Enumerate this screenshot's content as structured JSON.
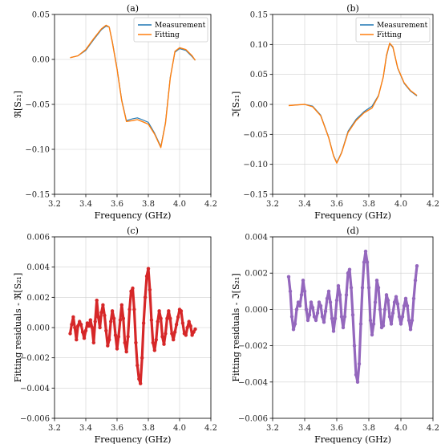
{
  "chart_data": [
    {
      "id": "a",
      "type": "line",
      "title": "(a)",
      "xlabel": "Frequency (GHz)",
      "ylabel": "ℜ[S₂₁]",
      "xlim": [
        3.2,
        4.2
      ],
      "ylim": [
        -0.15,
        0.05
      ],
      "xticks": [
        "3.2",
        "3.4",
        "3.6",
        "3.8",
        "4.0",
        "4.2"
      ],
      "yticks": [
        "0.05",
        "0.00",
        "−0.05",
        "−0.10",
        "−0.15"
      ],
      "grid": true,
      "legend": "top-right",
      "series": [
        {
          "name": "Measurement",
          "color": "#1f77b4",
          "x": [
            3.3,
            3.35,
            3.4,
            3.45,
            3.5,
            3.53,
            3.55,
            3.57,
            3.6,
            3.63,
            3.66,
            3.7,
            3.73,
            3.76,
            3.8,
            3.84,
            3.88,
            3.91,
            3.94,
            3.97,
            4.0,
            4.04,
            4.08,
            4.1
          ],
          "y": [
            0.002,
            0.004,
            0.01,
            0.022,
            0.033,
            0.037,
            0.036,
            0.02,
            -0.01,
            -0.045,
            -0.068,
            -0.066,
            -0.065,
            -0.067,
            -0.07,
            -0.082,
            -0.097,
            -0.07,
            -0.02,
            0.008,
            0.012,
            0.01,
            0.003,
            -0.001
          ]
        },
        {
          "name": "Fitting",
          "color": "#ff7f0e",
          "x": [
            3.3,
            3.35,
            3.4,
            3.45,
            3.5,
            3.53,
            3.55,
            3.57,
            3.6,
            3.63,
            3.66,
            3.7,
            3.73,
            3.76,
            3.8,
            3.84,
            3.88,
            3.91,
            3.94,
            3.97,
            4.0,
            4.04,
            4.08,
            4.1
          ],
          "y": [
            0.002,
            0.004,
            0.011,
            0.023,
            0.034,
            0.038,
            0.036,
            0.019,
            -0.011,
            -0.046,
            -0.069,
            -0.068,
            -0.067,
            -0.069,
            -0.072,
            -0.083,
            -0.098,
            -0.071,
            -0.021,
            0.009,
            0.013,
            0.011,
            0.004,
            -0.001
          ]
        }
      ]
    },
    {
      "id": "b",
      "type": "line",
      "title": "(b)",
      "xlabel": "Frequency (GHz)",
      "ylabel": "ℑ[S₂₁]",
      "xlim": [
        3.2,
        4.2
      ],
      "ylim": [
        -0.15,
        0.15
      ],
      "xticks": [
        "3.2",
        "3.4",
        "3.6",
        "3.8",
        "4.0",
        "4.2"
      ],
      "yticks": [
        "0.15",
        "0.10",
        "0.05",
        "0.00",
        "−0.05",
        "−0.10",
        "−0.15"
      ],
      "grid": true,
      "legend": "top-right",
      "series": [
        {
          "name": "Measurement",
          "color": "#1f77b4",
          "x": [
            3.3,
            3.35,
            3.4,
            3.45,
            3.5,
            3.55,
            3.58,
            3.6,
            3.63,
            3.67,
            3.72,
            3.77,
            3.82,
            3.86,
            3.89,
            3.91,
            3.93,
            3.95,
            3.98,
            4.02,
            4.06,
            4.1
          ],
          "y": [
            -0.002,
            -0.001,
            0.0,
            -0.003,
            -0.018,
            -0.055,
            -0.085,
            -0.097,
            -0.08,
            -0.045,
            -0.025,
            -0.012,
            -0.003,
            0.015,
            0.045,
            0.08,
            0.101,
            0.095,
            0.06,
            0.035,
            0.022,
            0.014
          ]
        },
        {
          "name": "Fitting",
          "color": "#ff7f0e",
          "x": [
            3.3,
            3.35,
            3.4,
            3.45,
            3.5,
            3.55,
            3.58,
            3.6,
            3.63,
            3.67,
            3.72,
            3.77,
            3.82,
            3.86,
            3.89,
            3.91,
            3.93,
            3.95,
            3.98,
            4.02,
            4.06,
            4.1
          ],
          "y": [
            -0.002,
            -0.001,
            0.0,
            -0.004,
            -0.019,
            -0.056,
            -0.086,
            -0.098,
            -0.081,
            -0.047,
            -0.027,
            -0.014,
            -0.006,
            0.014,
            0.046,
            0.082,
            0.102,
            0.096,
            0.061,
            0.036,
            0.023,
            0.015
          ]
        }
      ]
    },
    {
      "id": "c",
      "type": "scatter",
      "title": "(c)",
      "xlabel": "Frequency (GHz)",
      "ylabel": "Fitting residuals - ℜ[S₂₁]",
      "xlim": [
        3.2,
        4.2
      ],
      "ylim": [
        -0.006,
        0.006
      ],
      "xticks": [
        "3.2",
        "3.4",
        "3.6",
        "3.8",
        "4.0",
        "4.2"
      ],
      "yticks": [
        "0.006",
        "0.004",
        "0.002",
        "0.000",
        "−0.002",
        "−0.004",
        "−0.006"
      ],
      "grid": true,
      "series": [
        {
          "color": "#d62728",
          "x": [
            3.3,
            3.31,
            3.32,
            3.33,
            3.34,
            3.35,
            3.36,
            3.37,
            3.38,
            3.39,
            3.4,
            3.41,
            3.42,
            3.43,
            3.44,
            3.45,
            3.46,
            3.47,
            3.48,
            3.49,
            3.5,
            3.51,
            3.52,
            3.53,
            3.54,
            3.55,
            3.56,
            3.57,
            3.58,
            3.59,
            3.6,
            3.61,
            3.62,
            3.63,
            3.64,
            3.65,
            3.66,
            3.67,
            3.68,
            3.69,
            3.7,
            3.71,
            3.72,
            3.73,
            3.74,
            3.75,
            3.76,
            3.77,
            3.78,
            3.79,
            3.8,
            3.81,
            3.82,
            3.83,
            3.84,
            3.85,
            3.86,
            3.87,
            3.88,
            3.89,
            3.9,
            3.91,
            3.92,
            3.93,
            3.94,
            3.95,
            3.96,
            3.97,
            3.98,
            3.99,
            4.0,
            4.01,
            4.02,
            4.03,
            4.04,
            4.05,
            4.06,
            4.07,
            4.08,
            4.09,
            4.1
          ],
          "y": [
            -0.0004,
            0.0002,
            0.0007,
            0.0,
            -0.0008,
            0.0001,
            0.0004,
            0.0002,
            -0.0003,
            -0.0007,
            -0.0002,
            0.0003,
            0.0001,
            0.0005,
            0.0,
            -0.001,
            0.0004,
            0.0018,
            0.0007,
            0.0,
            0.001,
            0.0015,
            0.0008,
            -0.0002,
            -0.0012,
            -0.0008,
            0.0004,
            0.0011,
            0.0006,
            -0.0005,
            -0.0014,
            -0.0006,
            0.0005,
            0.0015,
            0.0006,
            -0.001,
            -0.0016,
            -0.0006,
            0.0012,
            0.0024,
            0.0026,
            0.0012,
            -0.001,
            -0.0025,
            -0.0034,
            -0.0037,
            -0.002,
            0.0003,
            0.002,
            0.0034,
            0.0039,
            0.0025,
            0.0005,
            -0.001,
            -0.0015,
            -0.0008,
            0.0004,
            0.0011,
            0.0006,
            -0.0006,
            -0.0011,
            -0.0004,
            0.0006,
            0.0011,
            0.0006,
            -0.0004,
            -0.0008,
            -0.0003,
            0.0002,
            0.0007,
            0.0012,
            0.0011,
            0.0003,
            -0.0004,
            -0.0005,
            0.0,
            0.0004,
            0.0001,
            -0.0005,
            -0.0003,
            -0.0001
          ]
        }
      ]
    },
    {
      "id": "d",
      "type": "scatter",
      "title": "(d)",
      "xlabel": "Frequency (GHz)",
      "ylabel": "Fitting residuals - ℑ[S₂₁]",
      "xlim": [
        3.2,
        4.2
      ],
      "ylim": [
        -0.006,
        0.004
      ],
      "xticks": [
        "3.2",
        "3.4",
        "3.6",
        "3.8",
        "4.0",
        "4.2"
      ],
      "yticks": [
        "0.004",
        "0.002",
        "0.000",
        "−0.002",
        "−0.004",
        "−0.006"
      ],
      "grid": true,
      "series": [
        {
          "color": "#9467bd",
          "x": [
            3.3,
            3.31,
            3.32,
            3.33,
            3.34,
            3.35,
            3.36,
            3.37,
            3.38,
            3.39,
            3.4,
            3.41,
            3.42,
            3.43,
            3.44,
            3.45,
            3.46,
            3.47,
            3.48,
            3.49,
            3.5,
            3.51,
            3.52,
            3.53,
            3.54,
            3.55,
            3.56,
            3.57,
            3.58,
            3.59,
            3.6,
            3.61,
            3.62,
            3.63,
            3.64,
            3.65,
            3.66,
            3.67,
            3.68,
            3.69,
            3.7,
            3.71,
            3.72,
            3.73,
            3.74,
            3.75,
            3.76,
            3.77,
            3.78,
            3.79,
            3.8,
            3.81,
            3.82,
            3.83,
            3.84,
            3.85,
            3.86,
            3.87,
            3.88,
            3.89,
            3.9,
            3.91,
            3.92,
            3.93,
            3.94,
            3.95,
            3.96,
            3.97,
            3.98,
            3.99,
            4.0,
            4.01,
            4.02,
            4.03,
            4.04,
            4.05,
            4.06,
            4.07,
            4.08,
            4.09,
            4.1
          ],
          "y": [
            0.0018,
            0.001,
            -0.0004,
            -0.0011,
            -0.0008,
            0.0,
            0.0004,
            0.0002,
            0.0008,
            0.0016,
            0.001,
            0.0,
            -0.0006,
            -0.0003,
            0.0004,
            0.0001,
            -0.0004,
            -0.0006,
            -0.0002,
            0.0004,
            0.0002,
            -0.0004,
            -0.0007,
            -0.0001,
            0.0006,
            0.001,
            0.0004,
            -0.0005,
            -0.0012,
            -0.0005,
            0.0005,
            0.0013,
            0.0008,
            -0.0004,
            -0.001,
            -0.0004,
            0.0008,
            0.002,
            0.0022,
            0.0012,
            -0.0003,
            -0.002,
            -0.0036,
            -0.004,
            -0.003,
            -0.0008,
            0.0012,
            0.0026,
            0.0032,
            0.0026,
            0.0012,
            -0.0006,
            -0.0014,
            -0.0008,
            0.0004,
            0.0016,
            0.0012,
            0.0,
            -0.001,
            -0.0009,
            0.0,
            0.0008,
            0.0005,
            -0.0004,
            -0.0008,
            -0.0002,
            0.0004,
            0.0007,
            0.0003,
            -0.0004,
            -0.0008,
            -0.0004,
            0.0002,
            0.0006,
            0.0002,
            -0.0006,
            -0.0011,
            -0.0006,
            0.0006,
            0.0016,
            0.0024
          ]
        }
      ]
    }
  ]
}
